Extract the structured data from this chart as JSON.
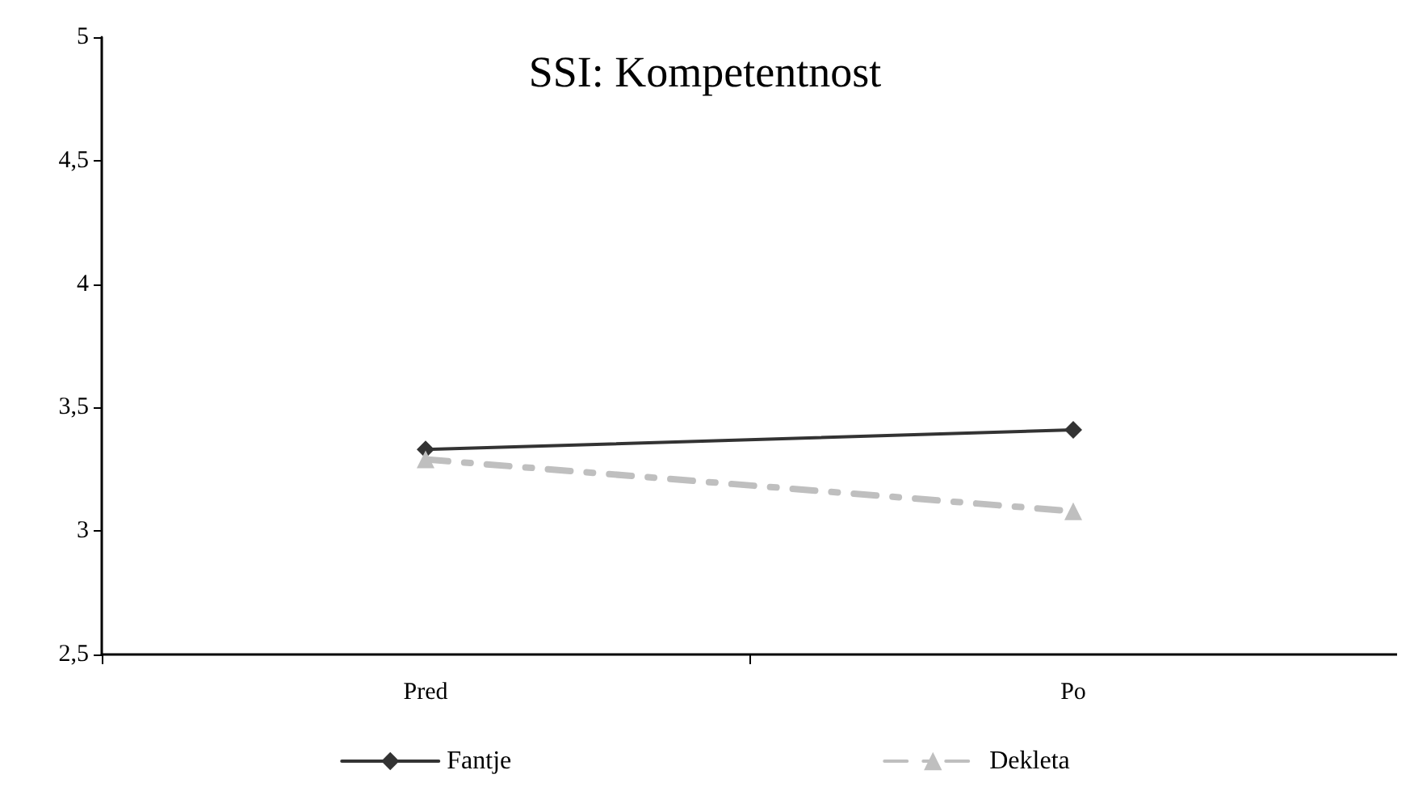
{
  "chart_data": {
    "type": "line",
    "title": "SSI: Kompetentnost",
    "categories": [
      "Pred",
      "Po"
    ],
    "series": [
      {
        "name": "Fantje",
        "color": "#333333",
        "values": [
          3.33,
          3.41
        ],
        "marker": "diamond",
        "line_style": "solid"
      },
      {
        "name": "Dekleta",
        "color": "#bfbfbf",
        "values": [
          3.29,
          3.08
        ],
        "marker": "triangle",
        "line_style": "dashed"
      }
    ],
    "ylim": [
      2.5,
      5
    ],
    "yticks": [
      {
        "value": 2.5,
        "label": "2,5"
      },
      3,
      {
        "value": 3.5,
        "label": "3,5"
      },
      4,
      {
        "value": 4.5,
        "label": "4,5"
      },
      5
    ],
    "grid": false,
    "legend": "bottom"
  }
}
